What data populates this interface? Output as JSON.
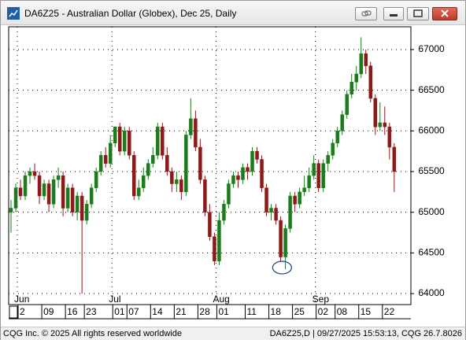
{
  "window": {
    "title": "DA6Z25 - Australian Dollar (Globex), Dec 25, Daily"
  },
  "footer": {
    "left": "CQG Inc. © 2025 All rights reserved worldwide",
    "right": "DA6Z25,D | 09/27/2025 15:53:13, CQG 26.7.8026"
  },
  "chart_data": {
    "type": "candlestick",
    "categories": [
      null,
      null,
      "2",
      null,
      null,
      null,
      null,
      "09",
      null,
      null,
      null,
      null,
      "16",
      null,
      null,
      null,
      "23",
      null,
      null,
      null,
      null,
      null,
      "01",
      null,
      null,
      "07",
      null,
      null,
      null,
      null,
      "14",
      null,
      null,
      null,
      null,
      "21",
      null,
      null,
      null,
      null,
      "28",
      null,
      null,
      null,
      "01",
      null,
      null,
      null,
      null,
      null,
      "11",
      null,
      null,
      null,
      null,
      "18",
      null,
      null,
      null,
      null,
      "25",
      null,
      null,
      null,
      null,
      "02",
      null,
      null,
      null,
      "08",
      null,
      null,
      null,
      null,
      "15",
      null,
      null,
      null,
      null,
      "22",
      null,
      null
    ],
    "months": [
      null,
      null,
      "Jun",
      null,
      null,
      null,
      null,
      null,
      null,
      null,
      null,
      null,
      null,
      null,
      null,
      null,
      null,
      null,
      null,
      null,
      null,
      null,
      "Jul",
      null,
      null,
      null,
      null,
      null,
      null,
      null,
      null,
      null,
      null,
      null,
      null,
      null,
      null,
      null,
      null,
      null,
      null,
      null,
      null,
      null,
      "Aug",
      null,
      null,
      null,
      null,
      null,
      null,
      null,
      null,
      null,
      null,
      null,
      null,
      null,
      null,
      null,
      null,
      null,
      null,
      null,
      null,
      "Sep",
      null,
      null,
      null,
      null,
      null,
      null,
      null,
      null,
      null,
      null,
      null,
      null,
      null,
      null,
      null,
      null
    ],
    "open": [
      65000,
      65050,
      65300,
      65200,
      65450,
      65500,
      65450,
      65200,
      65350,
      65100,
      65400,
      65450,
      65050,
      65300,
      65000,
      65200,
      64900,
      65100,
      65300,
      65500,
      65700,
      65600,
      65850,
      66050,
      65750,
      66000,
      65700,
      65200,
      65300,
      65450,
      65600,
      65700,
      66050,
      65700,
      65500,
      65350,
      65400,
      65250,
      65950,
      66150,
      65800,
      65400,
      65000,
      64700,
      64400,
      64900,
      65100,
      65350,
      65450,
      65400,
      65550,
      65500,
      65750,
      65650,
      65300,
      65000,
      65050,
      64900,
      64450,
      64800,
      65200,
      65100,
      65250,
      65300,
      65450,
      65600,
      65300,
      65600,
      65700,
      65850,
      66000,
      66200,
      66450,
      66600,
      66700,
      66950,
      66800,
      66400,
      66050,
      66100,
      66050,
      65800
    ],
    "high": [
      65150,
      65350,
      65400,
      65500,
      65550,
      65600,
      65500,
      65400,
      65400,
      65450,
      65550,
      65500,
      65350,
      65350,
      65250,
      65250,
      65150,
      65350,
      65550,
      65750,
      65800,
      65950,
      66050,
      66100,
      66050,
      66050,
      65750,
      65400,
      65550,
      65650,
      65800,
      66100,
      66100,
      65800,
      65550,
      65500,
      65450,
      66000,
      66400,
      66250,
      65900,
      65450,
      65100,
      64750,
      65000,
      65150,
      65400,
      65500,
      65500,
      65600,
      65600,
      65800,
      65800,
      65700,
      65350,
      65100,
      65100,
      64950,
      64850,
      65250,
      65250,
      65300,
      65450,
      65550,
      65700,
      65650,
      65650,
      65750,
      65900,
      66050,
      66250,
      66500,
      66700,
      66800,
      67150,
      67000,
      66850,
      66450,
      66350,
      66300,
      66100,
      65850
    ],
    "low": [
      64750,
      65000,
      65150,
      65150,
      65350,
      65400,
      65100,
      65150,
      65000,
      65050,
      65300,
      64950,
      65000,
      64950,
      64900,
      64000,
      64850,
      65050,
      65250,
      65450,
      65550,
      65550,
      65800,
      65700,
      65700,
      65650,
      65150,
      65150,
      65250,
      65400,
      65550,
      65650,
      65650,
      65450,
      65250,
      65250,
      65150,
      65200,
      65900,
      65750,
      65350,
      64950,
      64650,
      64350,
      64350,
      64850,
      65050,
      65300,
      65300,
      65350,
      65400,
      65450,
      65600,
      65250,
      64950,
      64900,
      64850,
      64400,
      64300,
      64750,
      65000,
      65050,
      65200,
      65250,
      65400,
      65250,
      65250,
      65500,
      65650,
      65800,
      65950,
      66150,
      66400,
      66500,
      66650,
      66700,
      66350,
      65950,
      66000,
      65950,
      65650,
      65250
    ],
    "close": [
      65050,
      65300,
      65200,
      65450,
      65500,
      65450,
      65200,
      65350,
      65100,
      65400,
      65450,
      65050,
      65300,
      65000,
      65200,
      64900,
      65100,
      65300,
      65500,
      65700,
      65600,
      65850,
      66050,
      65750,
      66000,
      65700,
      65200,
      65300,
      65450,
      65600,
      65700,
      66050,
      65700,
      65500,
      65350,
      65400,
      65250,
      65950,
      66150,
      65800,
      65400,
      65000,
      64700,
      64400,
      64900,
      65100,
      65350,
      65450,
      65400,
      65550,
      65500,
      65750,
      65650,
      65300,
      65000,
      65050,
      64900,
      64450,
      64800,
      65200,
      65100,
      65250,
      65300,
      65450,
      65600,
      65300,
      65600,
      65700,
      65850,
      66000,
      66200,
      66450,
      66600,
      66700,
      66950,
      66800,
      66400,
      66050,
      66100,
      66050,
      65800,
      65500
    ],
    "up_color": "#1e7a1e",
    "down_color": "#8b1a1a",
    "ylim": [
      63865,
      67280
    ],
    "yticks": [
      64000,
      64500,
      65000,
      65500,
      66000,
      66500,
      67000
    ],
    "grid": true
  }
}
